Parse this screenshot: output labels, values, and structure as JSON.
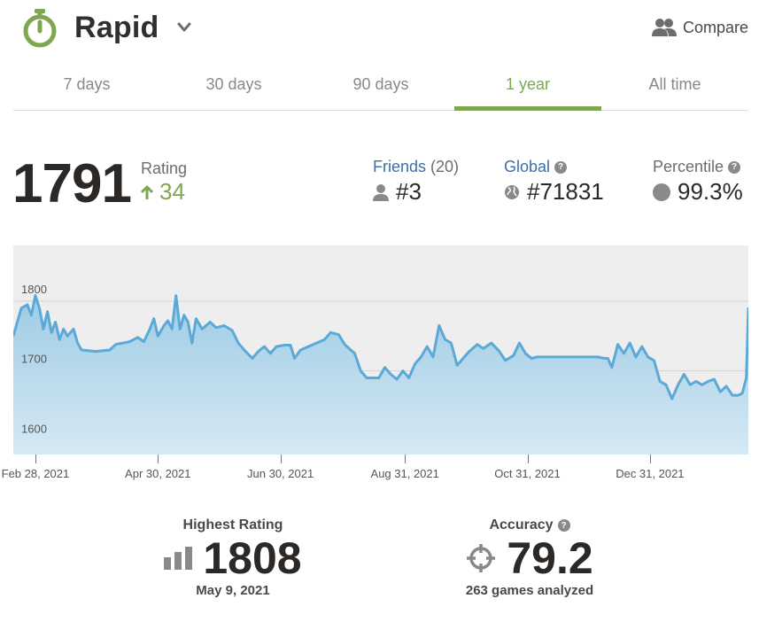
{
  "header": {
    "mode_title": "Rapid",
    "mode_icon": "stopwatch-icon",
    "compare_label": "Compare",
    "compare_icon": "users-icon"
  },
  "tabs": [
    {
      "label": "7 days",
      "active": false
    },
    {
      "label": "30 days",
      "active": false
    },
    {
      "label": "90 days",
      "active": false
    },
    {
      "label": "1 year",
      "active": true
    },
    {
      "label": "All time",
      "active": false
    }
  ],
  "rating": {
    "value": "1791",
    "label": "Rating",
    "change": "34",
    "change_direction": "up"
  },
  "stats": {
    "friends": {
      "label": "Friends",
      "count": "(20)",
      "value": "#3"
    },
    "global": {
      "label": "Global",
      "value": "#71831"
    },
    "percentile": {
      "label": "Percentile",
      "value": "99.3%"
    }
  },
  "colors": {
    "accent_green": "#7fa650",
    "link_blue": "#3d6fa8",
    "chart_line": "#5aa9d6",
    "chart_fill": "#b7d9ec"
  },
  "chart_data": {
    "type": "area",
    "y_ticks": [
      "1800",
      "1700",
      "1600"
    ],
    "x_labels": [
      "Feb 28, 2021",
      "Apr 30, 2021",
      "Jun 30, 2021",
      "Aug 31, 2021",
      "Oct 31, 2021",
      "Dec 31, 2021"
    ],
    "ylim": [
      1580,
      1880
    ],
    "x_range": [
      "2021-02-17",
      "2022-02-18"
    ],
    "grid": true,
    "series": [
      {
        "points": [
          [
            "2021-02-17",
            1750
          ],
          [
            "2021-02-21",
            1790
          ],
          [
            "2021-02-24",
            1795
          ],
          [
            "2021-02-26",
            1780
          ],
          [
            "2021-02-28",
            1808
          ],
          [
            "2021-03-02",
            1790
          ],
          [
            "2021-03-04",
            1760
          ],
          [
            "2021-03-06",
            1785
          ],
          [
            "2021-03-08",
            1755
          ],
          [
            "2021-03-10",
            1770
          ],
          [
            "2021-03-12",
            1745
          ],
          [
            "2021-03-14",
            1760
          ],
          [
            "2021-03-16",
            1750
          ],
          [
            "2021-03-19",
            1760
          ],
          [
            "2021-03-21",
            1740
          ],
          [
            "2021-03-23",
            1730
          ],
          [
            "2021-03-30",
            1728
          ],
          [
            "2021-04-06",
            1730
          ],
          [
            "2021-04-09",
            1738
          ],
          [
            "2021-04-16",
            1742
          ],
          [
            "2021-04-20",
            1748
          ],
          [
            "2021-04-23",
            1742
          ],
          [
            "2021-04-26",
            1760
          ],
          [
            "2021-04-28",
            1775
          ],
          [
            "2021-04-30",
            1750
          ],
          [
            "2021-05-03",
            1765
          ],
          [
            "2021-05-05",
            1772
          ],
          [
            "2021-05-07",
            1760
          ],
          [
            "2021-05-09",
            1808
          ],
          [
            "2021-05-11",
            1760
          ],
          [
            "2021-05-13",
            1780
          ],
          [
            "2021-05-15",
            1770
          ],
          [
            "2021-05-17",
            1740
          ],
          [
            "2021-05-19",
            1775
          ],
          [
            "2021-05-22",
            1760
          ],
          [
            "2021-05-26",
            1770
          ],
          [
            "2021-05-29",
            1762
          ],
          [
            "2021-06-02",
            1765
          ],
          [
            "2021-06-06",
            1758
          ],
          [
            "2021-06-09",
            1740
          ],
          [
            "2021-06-12",
            1730
          ],
          [
            "2021-06-16",
            1718
          ],
          [
            "2021-06-19",
            1728
          ],
          [
            "2021-06-22",
            1735
          ],
          [
            "2021-06-25",
            1725
          ],
          [
            "2021-06-28",
            1735
          ],
          [
            "2021-07-02",
            1737
          ],
          [
            "2021-07-05",
            1737
          ],
          [
            "2021-07-07",
            1718
          ],
          [
            "2021-07-10",
            1730
          ],
          [
            "2021-07-14",
            1735
          ],
          [
            "2021-07-18",
            1740
          ],
          [
            "2021-07-22",
            1745
          ],
          [
            "2021-07-25",
            1755
          ],
          [
            "2021-07-29",
            1752
          ],
          [
            "2021-08-01",
            1738
          ],
          [
            "2021-08-04",
            1730
          ],
          [
            "2021-08-06",
            1725
          ],
          [
            "2021-08-09",
            1700
          ],
          [
            "2021-08-12",
            1690
          ],
          [
            "2021-08-18",
            1690
          ],
          [
            "2021-08-21",
            1705
          ],
          [
            "2021-08-24",
            1695
          ],
          [
            "2021-08-27",
            1688
          ],
          [
            "2021-08-30",
            1700
          ],
          [
            "2021-09-02",
            1690
          ],
          [
            "2021-09-05",
            1710
          ],
          [
            "2021-09-08",
            1720
          ],
          [
            "2021-09-11",
            1735
          ],
          [
            "2021-09-14",
            1720
          ],
          [
            "2021-09-17",
            1765
          ],
          [
            "2021-09-20",
            1745
          ],
          [
            "2021-09-23",
            1740
          ],
          [
            "2021-09-26",
            1708
          ],
          [
            "2021-09-29",
            1718
          ],
          [
            "2021-10-02",
            1728
          ],
          [
            "2021-10-06",
            1738
          ],
          [
            "2021-10-09",
            1732
          ],
          [
            "2021-10-13",
            1740
          ],
          [
            "2021-10-17",
            1728
          ],
          [
            "2021-10-20",
            1715
          ],
          [
            "2021-10-24",
            1722
          ],
          [
            "2021-10-27",
            1740
          ],
          [
            "2021-10-30",
            1725
          ],
          [
            "2021-11-02",
            1718
          ],
          [
            "2021-11-05",
            1720
          ],
          [
            "2021-11-20",
            1720
          ],
          [
            "2021-12-05",
            1720
          ],
          [
            "2021-12-08",
            1718
          ],
          [
            "2021-12-10",
            1718
          ],
          [
            "2021-12-12",
            1705
          ],
          [
            "2021-12-15",
            1738
          ],
          [
            "2021-12-18",
            1725
          ],
          [
            "2021-12-21",
            1740
          ],
          [
            "2021-12-24",
            1720
          ],
          [
            "2021-12-27",
            1735
          ],
          [
            "2021-12-30",
            1720
          ],
          [
            "2022-01-02",
            1715
          ],
          [
            "2022-01-05",
            1685
          ],
          [
            "2022-01-08",
            1680
          ],
          [
            "2022-01-11",
            1660
          ],
          [
            "2022-01-14",
            1680
          ],
          [
            "2022-01-17",
            1695
          ],
          [
            "2022-01-20",
            1680
          ],
          [
            "2022-01-23",
            1685
          ],
          [
            "2022-01-26",
            1680
          ],
          [
            "2022-01-29",
            1685
          ],
          [
            "2022-02-01",
            1688
          ],
          [
            "2022-02-04",
            1670
          ],
          [
            "2022-02-07",
            1678
          ],
          [
            "2022-02-10",
            1665
          ],
          [
            "2022-02-13",
            1665
          ],
          [
            "2022-02-15",
            1668
          ],
          [
            "2022-02-17",
            1690
          ],
          [
            "2022-02-18",
            1791
          ]
        ]
      }
    ]
  },
  "summary": {
    "highest": {
      "label": "Highest Rating",
      "value": "1808",
      "date": "May 9, 2021",
      "icon": "bar-chart-icon"
    },
    "accuracy": {
      "label": "Accuracy",
      "value": "79.2",
      "sub": "263 games analyzed",
      "icon": "crosshair-icon"
    }
  }
}
